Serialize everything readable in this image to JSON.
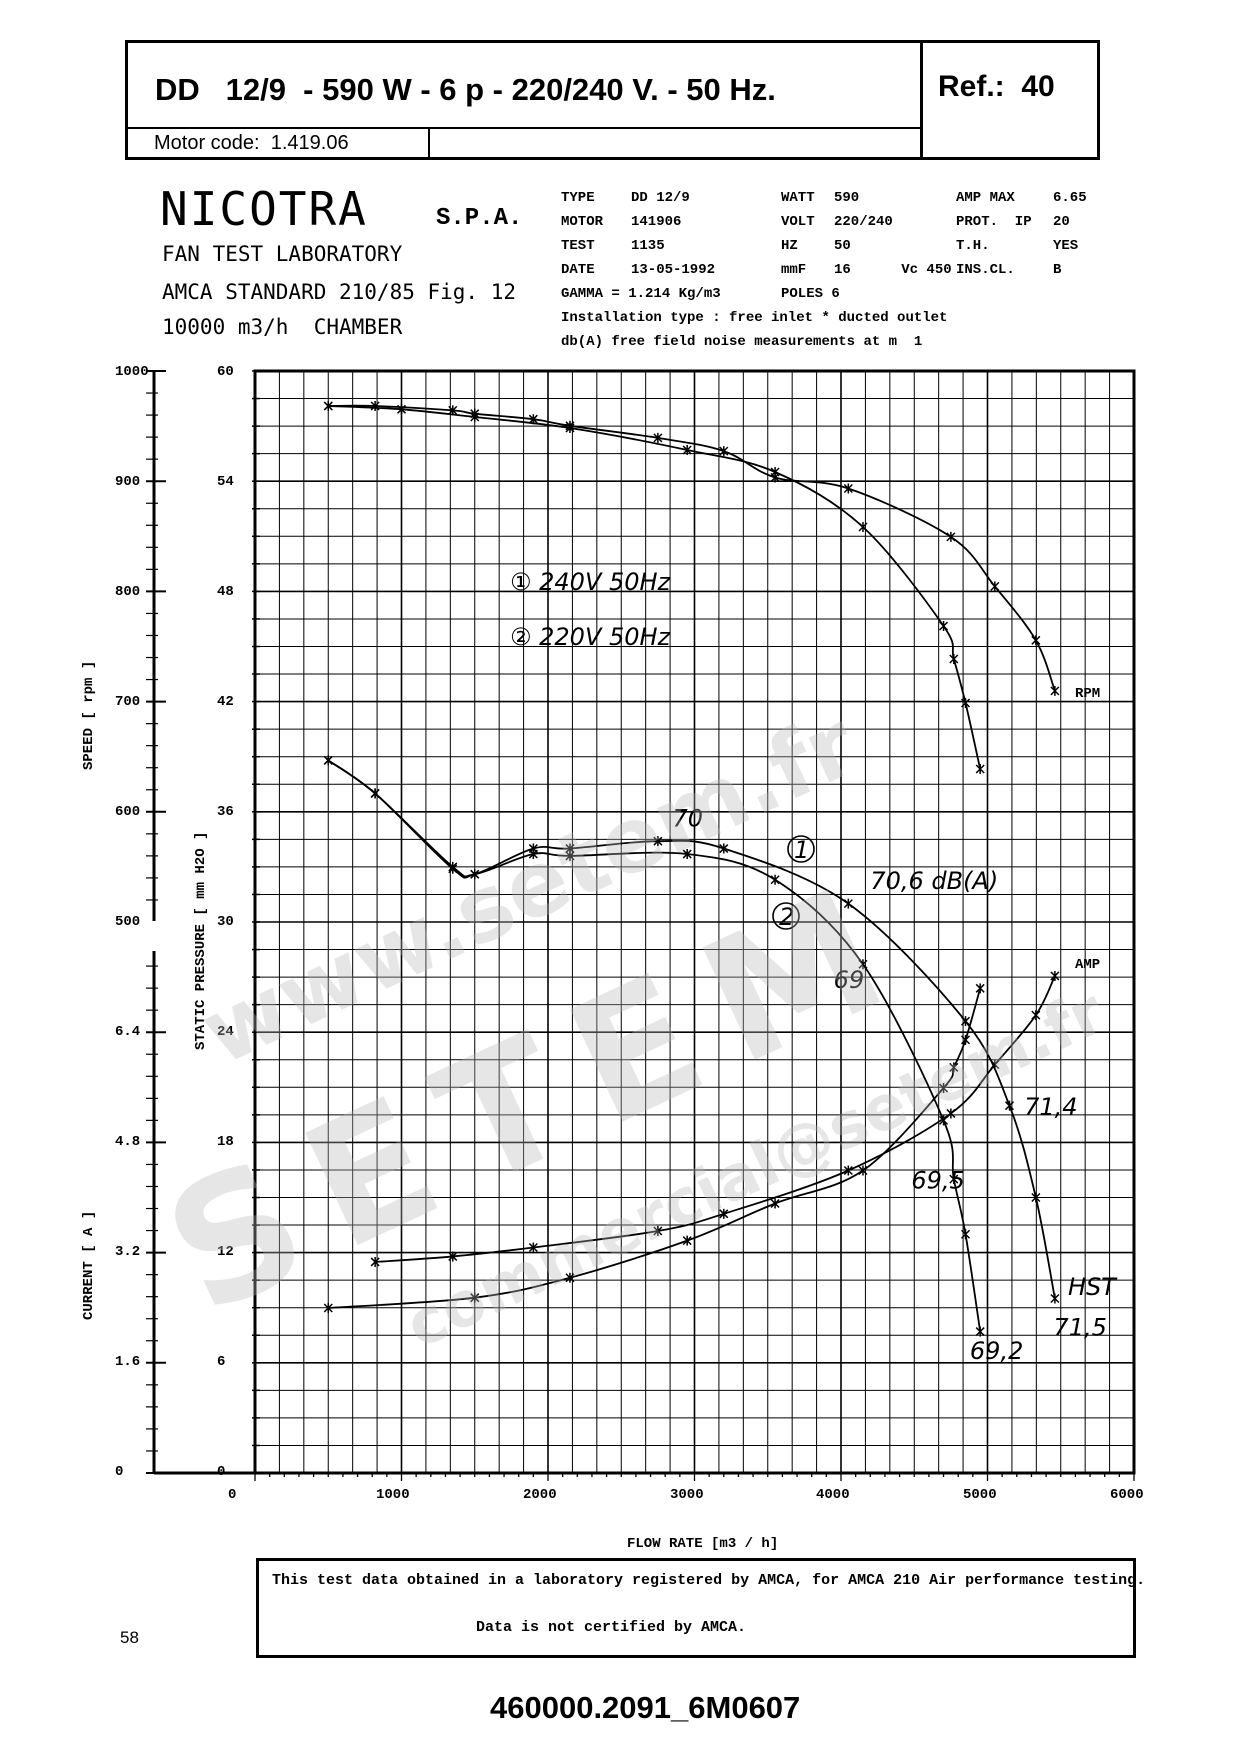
{
  "header": {
    "title": "DD   12/9  - 590 W - 6 p - 220/240 V. - 50 Hz.",
    "ref": "Ref.:  40",
    "motor_code": "Motor code:  1.419.06"
  },
  "lab": {
    "brand": "NICOTRA",
    "brand_suffix": "S.P.A.",
    "line1": "FAN TEST LABORATORY",
    "line2": "AMCA STANDARD 210/85 Fig. 12",
    "line3": "10000 m3/h  CHAMBER"
  },
  "specs": {
    "col1": [
      "TYPE",
      "MOTOR",
      "TEST",
      "DATE",
      "GAMMA = 1.214 Kg/m3"
    ],
    "col2": [
      "DD 12/9",
      "141906",
      "1135",
      "13-05-1992"
    ],
    "col3": [
      "WATT",
      "VOLT",
      "HZ",
      "mmF",
      "POLES 6"
    ],
    "col4": [
      "590",
      "220/240",
      "50",
      "16      Vc 450"
    ],
    "col5": [
      "AMP MAX",
      "PROT.  IP",
      "T.H.",
      "INS.CL."
    ],
    "col6": [
      "6.65",
      "20",
      "YES",
      "B"
    ],
    "installation": "Installation type : free inlet * ducted outlet",
    "noise": "db(A) free field noise measurements at m  1"
  },
  "footer": {
    "line1": "This test data obtained in a laboratory registered by AMCA, for AMCA 210 Air performance testing.",
    "line2": "Data is not certified by AMCA.",
    "page_number": "58",
    "doc_code": "460000.2091_6M0607"
  },
  "watermark": {
    "big": "SETEM",
    "url": "www.setem.fr",
    "email": "commercial@setem.fr"
  },
  "chart_data": {
    "type": "line",
    "xlabel": "FLOW RATE  [m3 / h]",
    "xlim": [
      0,
      6000
    ],
    "x_ticks": [
      "0",
      "1000",
      "2000",
      "3000",
      "4000",
      "5000",
      "6000"
    ],
    "y_axes": {
      "speed": {
        "label": "SPEED   [ rpm ]",
        "range": [
          500,
          1000
        ],
        "ticks": [
          "1000",
          "900",
          "800",
          "700",
          "600",
          "500"
        ]
      },
      "current": {
        "label": "CURRENT   [ A ]",
        "range": [
          0,
          8
        ],
        "ticks": [
          "6.4",
          "4.8",
          "3.2",
          "1.6",
          "0"
        ]
      },
      "pressure": {
        "label": "STATIC PRESSURE   [ mm H2O ]",
        "range": [
          0,
          60
        ],
        "ticks": [
          "60",
          "54",
          "48",
          "42",
          "36",
          "30",
          "24",
          "18",
          "12",
          "6",
          "0"
        ]
      }
    },
    "legend": [
      "① 240V 50Hz",
      "② 220V 50Hz"
    ],
    "curve_labels": {
      "rpm": "RPM",
      "amp": "AMP",
      "hst": "HST"
    },
    "series": [
      {
        "name": "RPM",
        "variant": "1",
        "axis": "speed",
        "x": [
          500,
          820,
          1350,
          1500,
          1900,
          2150,
          2750,
          3200,
          3550,
          4050,
          4750,
          5050,
          5330,
          5460
        ],
        "y": [
          970,
          970,
          966,
          963,
          958,
          952,
          941,
          929,
          905,
          895,
          851,
          806,
          757,
          711
        ]
      },
      {
        "name": "RPM",
        "variant": "2",
        "axis": "speed",
        "x": [
          500,
          1000,
          1500,
          2150,
          2950,
          3550,
          4150,
          4700,
          4770,
          4850,
          4950
        ],
        "y": [
          970,
          967,
          960,
          950,
          930,
          910,
          860,
          770,
          740,
          700,
          640
        ]
      },
      {
        "name": "Static pressure",
        "variant": "1",
        "axis": "pressure",
        "x": [
          500,
          820,
          1350,
          1500,
          1900,
          2150,
          2750,
          3200,
          4050,
          4850,
          5150,
          5330,
          5460
        ],
        "y": [
          38.8,
          37.0,
          32.9,
          32.6,
          34.0,
          34.0,
          34.4,
          34.0,
          31.0,
          24.6,
          20.0,
          15.0,
          9.5
        ]
      },
      {
        "name": "Static pressure",
        "variant": "2",
        "axis": "pressure",
        "x": [
          500,
          820,
          1350,
          1500,
          1900,
          2150,
          2950,
          3550,
          4150,
          4700,
          4770,
          4850,
          4950
        ],
        "y": [
          38.8,
          37.0,
          33.0,
          32.6,
          33.7,
          33.6,
          33.7,
          32.3,
          27.7,
          19.2,
          16.0,
          13.0,
          7.7
        ]
      },
      {
        "name": "Current",
        "variant": "1",
        "axis": "current",
        "x": [
          820,
          1350,
          1900,
          2750,
          3200,
          4050,
          4750,
          5050,
          5330,
          5460
        ],
        "y": [
          3.07,
          3.15,
          3.28,
          3.52,
          3.77,
          4.4,
          5.23,
          5.94,
          6.66,
          7.23
        ]
      },
      {
        "name": "Current",
        "variant": "2",
        "axis": "current",
        "x": [
          500,
          1500,
          2150,
          2950,
          3550,
          4150,
          4700,
          4770,
          4850,
          4950
        ],
        "y": [
          2.4,
          2.55,
          2.84,
          3.38,
          3.92,
          4.4,
          5.6,
          5.9,
          6.3,
          7.05
        ]
      }
    ],
    "annotations": [
      {
        "text": "70",
        "x": 2850,
        "y_pressure": 35.2
      },
      {
        "text": "70,6 dB(A)",
        "x": 4200,
        "y_pressure": 31.8
      },
      {
        "text": "69",
        "x": 3950,
        "y_pressure": 26.4
      },
      {
        "text": "71,4",
        "x": 5250,
        "y_pressure": 19.5
      },
      {
        "text": "69,5",
        "x": 4480,
        "y_pressure": 15.5
      },
      {
        "text": "71,5",
        "x": 5450,
        "y_pressure": 7.5
      },
      {
        "text": "69,2",
        "x": 4880,
        "y_pressure": 6.2
      }
    ],
    "grid": true
  }
}
